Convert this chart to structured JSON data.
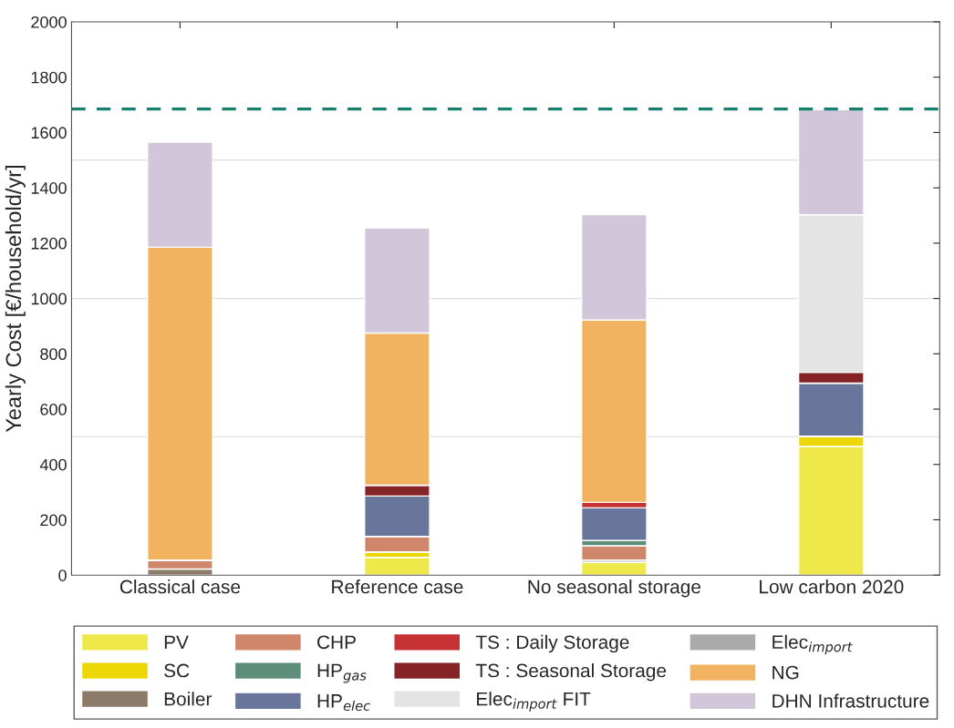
{
  "chart_data": {
    "type": "bar",
    "stacked": true,
    "ylabel": "Yearly Cost [€/household/yr]",
    "categories": [
      "Classical case",
      "Reference case",
      "No seasonal storage",
      "Low carbon 2020"
    ],
    "ylim": [
      0,
      2000
    ],
    "yticks": [
      0,
      200,
      400,
      600,
      800,
      1000,
      1200,
      1400,
      1600,
      1800,
      2000
    ],
    "legend": "bottom",
    "series": [
      {
        "name": "PV",
        "color": "#efe84a",
        "values": [
          0,
          64,
          47,
          465
        ]
      },
      {
        "name": "SC",
        "color": "#eed707",
        "values": [
          0,
          20,
          0,
          37
        ]
      },
      {
        "name": "Boiler",
        "color": "#8b7b68",
        "values": [
          22,
          0,
          7,
          0
        ]
      },
      {
        "name": "CHP",
        "color": "#cf866a",
        "values": [
          32,
          56,
          52,
          0
        ]
      },
      {
        "name": "HP$_{gas}$",
        "color": "#5e8d79",
        "values": [
          0,
          0,
          19,
          0
        ]
      },
      {
        "name": "HP$_{elec}$",
        "color": "#68769b",
        "values": [
          0,
          146,
          118,
          192
        ]
      },
      {
        "name": "TS : Daily Storage",
        "color": "#c63234",
        "values": [
          0,
          0,
          20,
          0
        ]
      },
      {
        "name": "TS : Seasonal Storage",
        "color": "#862326",
        "values": [
          0,
          39,
          0,
          39
        ]
      },
      {
        "name": "Elec$_{import}$ FIT",
        "color": "#e4e4e4",
        "values": [
          0,
          0,
          0,
          570
        ]
      },
      {
        "name": "Elec$_{import}$",
        "color": "#aaaaaa",
        "values": [
          0,
          0,
          0,
          0
        ]
      },
      {
        "name": "NG",
        "color": "#f1b360",
        "values": [
          1131,
          550,
          659,
          0
        ]
      },
      {
        "name": "DHN Infrastructure",
        "color": "#d2c6da",
        "values": [
          380,
          380,
          381,
          380
        ]
      }
    ],
    "ref_lines": [
      {
        "axis": "y",
        "value": 500,
        "color": "#e0e0e0",
        "line_style": "solid"
      },
      {
        "axis": "y",
        "value": 1000,
        "color": "#e0e0e0",
        "line_style": "solid"
      },
      {
        "axis": "y",
        "value": 1500,
        "color": "#e0e0e0",
        "line_style": "solid"
      },
      {
        "axis": "y",
        "value": 1685,
        "color": "#17806e",
        "line_style": "dashed"
      }
    ]
  }
}
